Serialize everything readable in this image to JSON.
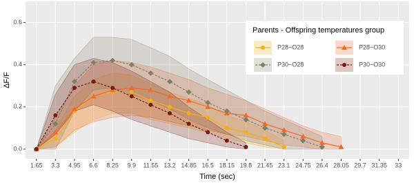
{
  "chart_data": {
    "type": "line",
    "xlabel": "Time (sec)",
    "ylabel": "ΔF/F",
    "legend_title": "Parents - Offspring temperatures group",
    "legend": "top-right",
    "grid": true,
    "x": [
      1.65,
      3.3,
      4.95,
      6.6,
      8.25,
      9.9,
      11.55,
      13.2,
      14.85,
      16.5,
      18.15,
      19.8,
      21.45,
      23.1,
      24.75,
      26.4,
      28.05,
      29.7,
      31.35,
      33
    ],
    "xlim": [
      0.71,
      33.94
    ],
    "xticks": [
      1.65,
      3.3,
      4.95,
      6.6,
      8.25,
      9.9,
      11.55,
      13.2,
      14.85,
      16.5,
      18.15,
      19.8,
      21.45,
      23.1,
      24.75,
      26.4,
      28.05,
      29.7,
      31.35,
      33
    ],
    "ylim": [
      -0.046,
      0.7
    ],
    "yticks": [
      {
        "value": 0,
        "label": "0.0"
      },
      {
        "value": 0.2,
        "label": "0.2"
      },
      {
        "value": 0.4,
        "label": "0.4"
      },
      {
        "value": 0.6,
        "label": "0.6"
      }
    ],
    "series": [
      {
        "name": "P28−O28",
        "color": "#f5ad1b",
        "shape": "circle",
        "dashed": false,
        "values": [
          0,
          0.05,
          0.18,
          0.25,
          0.27,
          0.27,
          0.23,
          0.2,
          0.17,
          0.15,
          0.1,
          0.08,
          0.05,
          0.01,
          null,
          null,
          null,
          null,
          null,
          null
        ],
        "upper": [
          0,
          0.09,
          0.25,
          0.33,
          0.36,
          0.35,
          0.31,
          0.27,
          0.24,
          0.21,
          0.16,
          0.13,
          0.09,
          0.04,
          null,
          null,
          null,
          null,
          null,
          null
        ],
        "lower": [
          0,
          0.01,
          0.08,
          0.14,
          0.17,
          0.17,
          0.14,
          0.12,
          0.1,
          0.08,
          0.05,
          0.03,
          0.01,
          0,
          null,
          null,
          null,
          null,
          null,
          null
        ]
      },
      {
        "name": "P28−O30",
        "color": "#f06a30",
        "shape": "triangle",
        "dashed": false,
        "values": [
          0,
          0.08,
          0.19,
          0.25,
          0.28,
          0.29,
          0.28,
          0.25,
          0.23,
          0.2,
          0.17,
          0.16,
          0.12,
          0.09,
          0.06,
          0.03,
          0.01,
          null,
          null,
          null
        ],
        "upper": [
          0,
          0.15,
          0.3,
          0.4,
          0.42,
          0.41,
          0.39,
          0.36,
          0.33,
          0.29,
          0.26,
          0.23,
          0.19,
          0.15,
          0.11,
          0.08,
          0.06,
          null,
          null,
          null
        ],
        "lower": [
          0,
          0.01,
          0.09,
          0.13,
          0.15,
          0.16,
          0.15,
          0.13,
          0.11,
          0.09,
          0.07,
          0.06,
          0.04,
          0.02,
          0.01,
          0,
          0,
          null,
          null,
          null
        ]
      },
      {
        "name": "P30−O28",
        "color": "#857f62",
        "shape": "diamond",
        "dashed": true,
        "values": [
          0,
          0.12,
          0.32,
          0.41,
          0.42,
          0.4,
          0.36,
          0.32,
          0.27,
          0.22,
          0.18,
          0.14,
          0.1,
          0.07,
          0.04,
          0.01,
          null,
          null,
          null,
          null
        ],
        "upper": [
          0,
          0.3,
          0.43,
          0.53,
          0.53,
          0.52,
          0.48,
          0.44,
          0.38,
          0.33,
          0.28,
          0.23,
          0.18,
          0.14,
          0.1,
          0.06,
          null,
          null,
          null,
          null
        ],
        "lower": [
          0,
          0,
          0.18,
          0.28,
          0.29,
          0.26,
          0.23,
          0.19,
          0.14,
          0.1,
          0.07,
          0.04,
          0.02,
          0,
          0,
          0,
          null,
          null,
          null,
          null
        ]
      },
      {
        "name": "P30−O30",
        "color": "#7a1c0c",
        "shape": "circle",
        "dashed": true,
        "values": [
          0,
          0.16,
          0.29,
          0.32,
          0.29,
          0.25,
          0.21,
          0.17,
          0.12,
          0.08,
          0.04,
          0.01,
          null,
          null,
          null,
          null,
          null,
          null,
          null,
          null
        ],
        "upper": [
          0,
          0.26,
          0.4,
          0.43,
          0.41,
          0.37,
          0.32,
          0.27,
          0.2,
          0.14,
          0.08,
          0.03,
          null,
          null,
          null,
          null,
          null,
          null,
          null,
          null
        ],
        "lower": [
          0,
          0.07,
          0.18,
          0.21,
          0.18,
          0.14,
          0.11,
          0.08,
          0.05,
          0.03,
          0.01,
          0,
          null,
          null,
          null,
          null,
          null,
          null,
          null,
          null
        ]
      }
    ]
  }
}
